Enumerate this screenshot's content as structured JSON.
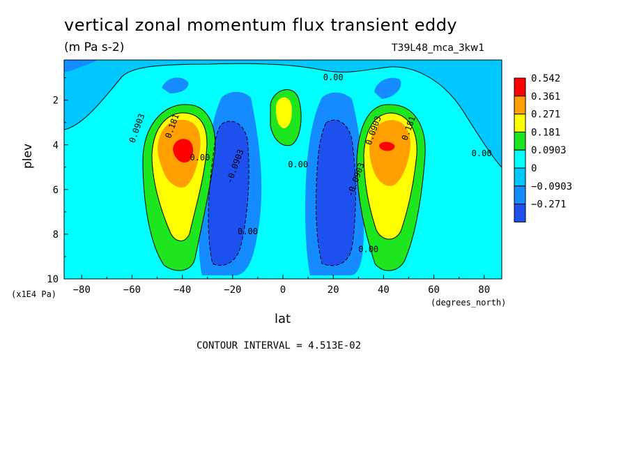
{
  "colors": {
    "band_lt_-0.271": "#1e50f0",
    "band_-0.271_-0.0903": "#148cff",
    "band_-0.0903_0": "#00c8ff",
    "band_0_0.0903": "#00ffff",
    "band_0.0903_0.181": "#1ee61e",
    "band_0.181_0.271": "#ffff00",
    "band_0.271_0.361": "#ffa000",
    "band_gt_0.542": "#ff0000"
  },
  "chart_data": {
    "type": "heatmap",
    "title": "vertical zonal momentum flux transient eddy",
    "subtitle": "(m Pa s-2)",
    "run_label": "T39L48_mca_3kw1",
    "xlabel": "lat",
    "x_units": "(degrees_north)",
    "ylabel": "plev",
    "y_units": "(x1E4 Pa)",
    "xlim": [
      -87,
      87
    ],
    "ylim": [
      10,
      0.2
    ],
    "x_ticks": [
      -80,
      -60,
      -40,
      -20,
      0,
      20,
      40,
      60,
      80
    ],
    "x_tick_labels": [
      "−80",
      "−60",
      "−40",
      "−20",
      "0",
      "20",
      "40",
      "60",
      "80"
    ],
    "y_ticks": [
      2,
      4,
      6,
      8,
      10
    ],
    "y_tick_labels": [
      "2",
      "4",
      "6",
      "8",
      "10"
    ],
    "contour_interval": "CONTOUR INTERVAL = 4.513E-02",
    "legend_levels": [
      "0.542",
      "0.361",
      "0.271",
      "0.181",
      "0.0903",
      "0",
      "−0.0903",
      "−0.271"
    ],
    "contour_labels": [
      {
        "text": "0.00",
        "x": 20,
        "y": 1.1
      },
      {
        "text": "0.0903",
        "x": -57,
        "y": 3.3
      },
      {
        "text": "0.181",
        "x": -43,
        "y": 3.2
      },
      {
        "text": "0.00",
        "x": -33,
        "y": 4.7
      },
      {
        "text": "-0.0903",
        "x": -18,
        "y": 5.0
      },
      {
        "text": "0.00",
        "x": 6,
        "y": 5.0
      },
      {
        "text": "-0.0903",
        "x": 30,
        "y": 5.6
      },
      {
        "text": "0.0903",
        "x": 37,
        "y": 3.4
      },
      {
        "text": "0.181",
        "x": 51,
        "y": 3.3
      },
      {
        "text": "0.00",
        "x": 79,
        "y": 4.5
      },
      {
        "text": "0.00",
        "x": -14,
        "y": 8.0
      },
      {
        "text": "0.00",
        "x": 34,
        "y": 8.8
      }
    ],
    "field_features": [
      {
        "kind": "positive_max",
        "x": -40,
        "y": 4.1,
        "value": 0.54
      },
      {
        "kind": "positive_max",
        "x": 42,
        "y": 4.1,
        "value": 0.4
      },
      {
        "kind": "positive_max",
        "x": 0,
        "y": 2.4,
        "value": 0.27
      },
      {
        "kind": "negative_min",
        "x": -22,
        "y": 6.5,
        "value": -0.3
      },
      {
        "kind": "negative_min",
        "x": 24,
        "y": 6.5,
        "value": -0.3
      }
    ]
  }
}
